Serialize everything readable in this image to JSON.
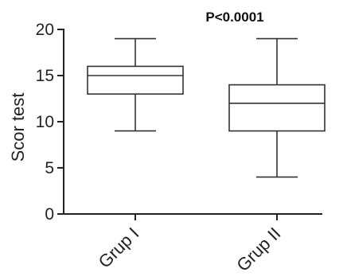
{
  "chart_data": {
    "type": "boxplot",
    "title": "",
    "xlabel": "",
    "ylabel": "Scor test",
    "ylim": [
      0,
      20
    ],
    "yticks": [
      0,
      5,
      10,
      15,
      20
    ],
    "categories": [
      "Grup I",
      "Grup II"
    ],
    "boxes": [
      {
        "min": 9,
        "q1": 13,
        "median": 15,
        "q3": 16,
        "max": 19
      },
      {
        "min": 4,
        "q1": 9,
        "median": 12,
        "q3": 14,
        "max": 19
      }
    ],
    "annotation": "P<0.0001",
    "grid": false,
    "colors": {
      "axis": "#222222",
      "box": "#333333",
      "background": "#ffffff"
    }
  }
}
